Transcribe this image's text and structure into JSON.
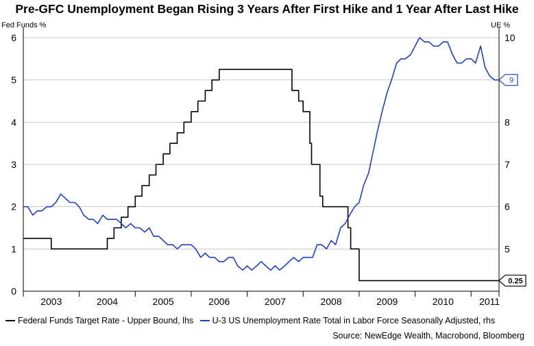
{
  "chart_data": {
    "type": "line",
    "title": "Pre-GFC Unemployment Began Rising 3 Years After First Hike and 1 Year After Last Hike",
    "left_axis_label": "Fed Funds %",
    "right_axis_label": "UE %",
    "left_ylim": [
      0,
      6
    ],
    "left_yticks": [
      "0",
      "1",
      "2",
      "3",
      "4",
      "5",
      "6"
    ],
    "right_ylim": [
      4,
      10
    ],
    "right_yticks": [
      "5",
      "6",
      "7",
      "8",
      "9",
      "10"
    ],
    "xlim": [
      2002.5,
      2011.0
    ],
    "xticks": [
      {
        "label": "2003",
        "x": 2003.0
      },
      {
        "label": "2004",
        "x": 2004.0
      },
      {
        "label": "2005",
        "x": 2005.0
      },
      {
        "label": "2006",
        "x": 2006.0
      },
      {
        "label": "2007",
        "x": 2007.0
      },
      {
        "label": "2008",
        "x": 2008.0
      },
      {
        "label": "2009",
        "x": 2009.0
      },
      {
        "label": "2010",
        "x": 2010.0
      },
      {
        "label": "2011",
        "x": 2010.83
      }
    ],
    "grid": "horizontal",
    "legend_position": "bottom",
    "series": [
      {
        "name": "Federal Funds Target Rate - Upper Bound, lhs",
        "axis": "left",
        "color": "#000000",
        "step": true,
        "end_label": "0.25",
        "points": [
          [
            2002.5,
            1.25
          ],
          [
            2003.0,
            1.25
          ],
          [
            2003.0,
            1.0
          ],
          [
            2004.0,
            1.0
          ],
          [
            2004.0,
            1.25
          ],
          [
            2004.12,
            1.25
          ],
          [
            2004.12,
            1.5
          ],
          [
            2004.25,
            1.5
          ],
          [
            2004.25,
            1.75
          ],
          [
            2004.37,
            1.75
          ],
          [
            2004.37,
            2.0
          ],
          [
            2004.5,
            2.0
          ],
          [
            2004.5,
            2.25
          ],
          [
            2004.62,
            2.25
          ],
          [
            2004.62,
            2.5
          ],
          [
            2004.75,
            2.5
          ],
          [
            2004.75,
            2.75
          ],
          [
            2004.87,
            2.75
          ],
          [
            2004.87,
            3.0
          ],
          [
            2005.0,
            3.0
          ],
          [
            2005.0,
            3.25
          ],
          [
            2005.12,
            3.25
          ],
          [
            2005.12,
            3.5
          ],
          [
            2005.25,
            3.5
          ],
          [
            2005.25,
            3.75
          ],
          [
            2005.37,
            3.75
          ],
          [
            2005.37,
            4.0
          ],
          [
            2005.5,
            4.0
          ],
          [
            2005.5,
            4.25
          ],
          [
            2005.62,
            4.25
          ],
          [
            2005.62,
            4.5
          ],
          [
            2005.75,
            4.5
          ],
          [
            2005.75,
            4.75
          ],
          [
            2005.87,
            4.75
          ],
          [
            2005.87,
            5.0
          ],
          [
            2006.0,
            5.0
          ],
          [
            2006.0,
            5.25
          ],
          [
            2007.3,
            5.25
          ],
          [
            2007.3,
            4.75
          ],
          [
            2007.42,
            4.75
          ],
          [
            2007.42,
            4.5
          ],
          [
            2007.5,
            4.5
          ],
          [
            2007.5,
            4.25
          ],
          [
            2007.62,
            4.25
          ],
          [
            2007.62,
            3.5
          ],
          [
            2007.65,
            3.5
          ],
          [
            2007.65,
            3.0
          ],
          [
            2007.8,
            3.0
          ],
          [
            2007.8,
            2.25
          ],
          [
            2007.85,
            2.25
          ],
          [
            2007.85,
            2.0
          ],
          [
            2008.3,
            2.0
          ],
          [
            2008.3,
            1.5
          ],
          [
            2008.35,
            1.5
          ],
          [
            2008.35,
            1.0
          ],
          [
            2008.5,
            1.0
          ],
          [
            2008.5,
            0.25
          ],
          [
            2011.0,
            0.25
          ]
        ]
      },
      {
        "name": "U-3 US Unemployment Rate Total in Labor Force Seasonally Adjusted, rhs",
        "axis": "right",
        "color": "#1f3fbf",
        "step": false,
        "end_label": "9",
        "points": [
          [
            2002.5,
            6.0
          ],
          [
            2002.58,
            6.0
          ],
          [
            2002.67,
            5.8
          ],
          [
            2002.75,
            5.9
          ],
          [
            2002.83,
            5.9
          ],
          [
            2002.92,
            6.0
          ],
          [
            2003.0,
            6.0
          ],
          [
            2003.08,
            6.1
          ],
          [
            2003.17,
            6.3
          ],
          [
            2003.25,
            6.2
          ],
          [
            2003.33,
            6.1
          ],
          [
            2003.42,
            6.1
          ],
          [
            2003.5,
            6.0
          ],
          [
            2003.58,
            5.8
          ],
          [
            2003.67,
            5.7
          ],
          [
            2003.75,
            5.7
          ],
          [
            2003.83,
            5.6
          ],
          [
            2003.92,
            5.8
          ],
          [
            2004.0,
            5.7
          ],
          [
            2004.08,
            5.7
          ],
          [
            2004.17,
            5.7
          ],
          [
            2004.25,
            5.6
          ],
          [
            2004.33,
            5.5
          ],
          [
            2004.42,
            5.6
          ],
          [
            2004.5,
            5.5
          ],
          [
            2004.58,
            5.5
          ],
          [
            2004.67,
            5.4
          ],
          [
            2004.75,
            5.5
          ],
          [
            2004.83,
            5.3
          ],
          [
            2004.92,
            5.3
          ],
          [
            2005.0,
            5.2
          ],
          [
            2005.08,
            5.1
          ],
          [
            2005.17,
            5.1
          ],
          [
            2005.25,
            5.0
          ],
          [
            2005.33,
            5.1
          ],
          [
            2005.42,
            5.1
          ],
          [
            2005.5,
            5.1
          ],
          [
            2005.58,
            5.0
          ],
          [
            2005.67,
            4.8
          ],
          [
            2005.75,
            4.9
          ],
          [
            2005.83,
            4.8
          ],
          [
            2005.92,
            4.8
          ],
          [
            2006.0,
            4.7
          ],
          [
            2006.08,
            4.7
          ],
          [
            2006.17,
            4.8
          ],
          [
            2006.25,
            4.8
          ],
          [
            2006.33,
            4.6
          ],
          [
            2006.42,
            4.5
          ],
          [
            2006.5,
            4.6
          ],
          [
            2006.58,
            4.5
          ],
          [
            2006.67,
            4.6
          ],
          [
            2006.75,
            4.7
          ],
          [
            2006.83,
            4.6
          ],
          [
            2006.92,
            4.5
          ],
          [
            2007.0,
            4.6
          ],
          [
            2007.08,
            4.5
          ],
          [
            2007.17,
            4.6
          ],
          [
            2007.25,
            4.7
          ],
          [
            2007.33,
            4.8
          ],
          [
            2007.42,
            4.7
          ],
          [
            2007.5,
            4.8
          ],
          [
            2007.58,
            4.8
          ],
          [
            2007.67,
            4.8
          ],
          [
            2007.75,
            5.1
          ],
          [
            2007.83,
            5.1
          ],
          [
            2007.92,
            5.0
          ],
          [
            2008.0,
            5.2
          ],
          [
            2008.08,
            5.1
          ],
          [
            2008.17,
            5.5
          ],
          [
            2008.25,
            5.6
          ],
          [
            2008.33,
            5.8
          ],
          [
            2008.42,
            6.0
          ],
          [
            2008.5,
            6.1
          ],
          [
            2008.58,
            6.5
          ],
          [
            2008.67,
            6.8
          ],
          [
            2008.75,
            7.3
          ],
          [
            2008.83,
            7.8
          ],
          [
            2008.92,
            8.3
          ],
          [
            2009.0,
            8.7
          ],
          [
            2009.08,
            9.0
          ],
          [
            2009.17,
            9.4
          ],
          [
            2009.25,
            9.5
          ],
          [
            2009.33,
            9.5
          ],
          [
            2009.42,
            9.6
          ],
          [
            2009.5,
            9.8
          ],
          [
            2009.58,
            10.0
          ],
          [
            2009.67,
            9.9
          ],
          [
            2009.75,
            9.9
          ],
          [
            2009.83,
            9.8
          ],
          [
            2009.92,
            9.8
          ],
          [
            2010.0,
            9.9
          ],
          [
            2010.08,
            9.9
          ],
          [
            2010.17,
            9.6
          ],
          [
            2010.25,
            9.4
          ],
          [
            2010.33,
            9.4
          ],
          [
            2010.42,
            9.5
          ],
          [
            2010.5,
            9.5
          ],
          [
            2010.58,
            9.4
          ],
          [
            2010.67,
            9.8
          ],
          [
            2010.75,
            9.3
          ],
          [
            2010.83,
            9.1
          ],
          [
            2010.92,
            9.0
          ],
          [
            2011.0,
            9.0
          ]
        ]
      }
    ],
    "source": "Source: NewEdge Wealth, Macrobond, Bloomberg"
  }
}
